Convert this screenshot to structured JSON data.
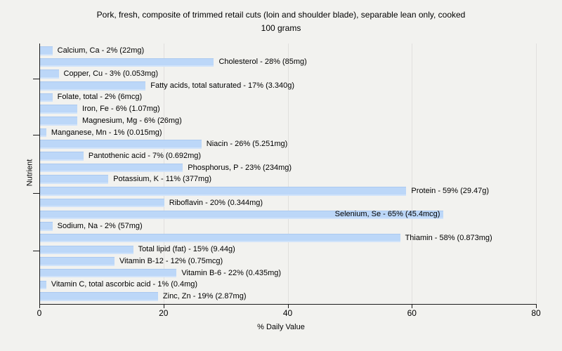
{
  "page": {
    "background": "#f2f2ef"
  },
  "chart_data": {
    "type": "bar",
    "orientation": "horizontal",
    "title_line1": "Pork, fresh, composite of trimmed retail cuts (loin and shoulder blade), separable lean only, cooked",
    "title_line2": "100 grams",
    "xlabel": "% Daily Value",
    "ylabel": "Nutrient",
    "xlim": [
      0,
      80
    ],
    "x_ticks": [
      "0",
      "20",
      "40",
      "60",
      "80"
    ],
    "grid": "vertical-gridlines-on",
    "legend": "none",
    "bar_color": "#bcd7f8",
    "items": [
      {
        "name": "Calcium, Ca",
        "pct": 2,
        "amount": "22mg",
        "label": "Calcium, Ca - 2% (22mg)",
        "label_inside": false
      },
      {
        "name": "Cholesterol",
        "pct": 28,
        "amount": "85mg",
        "label": "Cholesterol - 28% (85mg)",
        "label_inside": false
      },
      {
        "name": "Copper, Cu",
        "pct": 3,
        "amount": "0.053mg",
        "label": "Copper, Cu - 3% (0.053mg)",
        "label_inside": false
      },
      {
        "name": "Fatty acids, total saturated",
        "pct": 17,
        "amount": "3.340g",
        "label": "Fatty acids, total saturated - 17% (3.340g)",
        "label_inside": false
      },
      {
        "name": "Folate, total",
        "pct": 2,
        "amount": "6mcg",
        "label": "Folate, total - 2% (6mcg)",
        "label_inside": false
      },
      {
        "name": "Iron, Fe",
        "pct": 6,
        "amount": "1.07mg",
        "label": "Iron, Fe - 6% (1.07mg)",
        "label_inside": false
      },
      {
        "name": "Magnesium, Mg",
        "pct": 6,
        "amount": "26mg",
        "label": "Magnesium, Mg - 6% (26mg)",
        "label_inside": false
      },
      {
        "name": "Manganese, Mn",
        "pct": 1,
        "amount": "0.015mg",
        "label": "Manganese, Mn - 1% (0.015mg)",
        "label_inside": false
      },
      {
        "name": "Niacin",
        "pct": 26,
        "amount": "5.251mg",
        "label": "Niacin - 26% (5.251mg)",
        "label_inside": false
      },
      {
        "name": "Pantothenic acid",
        "pct": 7,
        "amount": "0.692mg",
        "label": "Pantothenic acid - 7% (0.692mg)",
        "label_inside": false
      },
      {
        "name": "Phosphorus, P",
        "pct": 23,
        "amount": "234mg",
        "label": "Phosphorus, P - 23% (234mg)",
        "label_inside": false
      },
      {
        "name": "Potassium, K",
        "pct": 11,
        "amount": "377mg",
        "label": "Potassium, K - 11% (377mg)",
        "label_inside": false
      },
      {
        "name": "Protein",
        "pct": 59,
        "amount": "29.47g",
        "label": "Protein - 59% (29.47g)",
        "label_inside": false
      },
      {
        "name": "Riboflavin",
        "pct": 20,
        "amount": "0.344mg",
        "label": "Riboflavin - 20% (0.344mg)",
        "label_inside": false
      },
      {
        "name": "Selenium, Se",
        "pct": 65,
        "amount": "45.4mcg",
        "label": "Selenium, Se - 65% (45.4mcg)",
        "label_inside": true
      },
      {
        "name": "Sodium, Na",
        "pct": 2,
        "amount": "57mg",
        "label": "Sodium, Na - 2% (57mg)",
        "label_inside": false
      },
      {
        "name": "Thiamin",
        "pct": 58,
        "amount": "0.873mg",
        "label": "Thiamin - 58% (0.873mg)",
        "label_inside": false
      },
      {
        "name": "Total lipid (fat)",
        "pct": 15,
        "amount": "9.44g",
        "label": "Total lipid (fat) - 15% (9.44g)",
        "label_inside": false
      },
      {
        "name": "Vitamin B-12",
        "pct": 12,
        "amount": "0.75mcg",
        "label": "Vitamin B-12 - 12% (0.75mcg)",
        "label_inside": false
      },
      {
        "name": "Vitamin B-6",
        "pct": 22,
        "amount": "0.435mg",
        "label": "Vitamin B-6 - 22% (0.435mg)",
        "label_inside": false
      },
      {
        "name": "Vitamin C, total ascorbic acid",
        "pct": 1,
        "amount": "0.4mg",
        "label": "Vitamin C, total ascorbic acid - 1% (0.4mg)",
        "label_inside": false
      },
      {
        "name": "Zinc, Zn",
        "pct": 19,
        "amount": "2.87mg",
        "label": "Zinc, Zn - 19% (2.87mg)",
        "label_inside": false
      }
    ]
  }
}
